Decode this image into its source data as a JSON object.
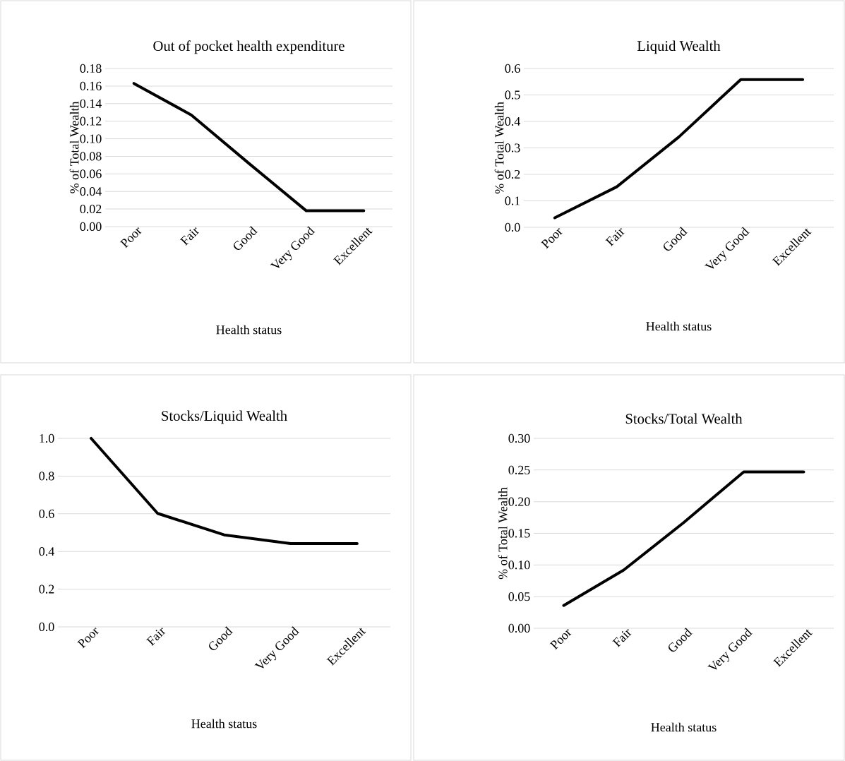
{
  "chart_data": [
    {
      "type": "line",
      "title": "Out of pocket health expenditure",
      "xlabel": "Health status",
      "ylabel": "% of Total Wealth",
      "categories": [
        "Poor",
        "Fair",
        "Good",
        "Very Good",
        "Excellent"
      ],
      "values": [
        0.163,
        0.127,
        0.072,
        0.018,
        0.018
      ],
      "color": "#000000",
      "ylim": [
        0,
        0.18
      ],
      "yticks": [
        {
          "value": 0,
          "label": "0.00"
        },
        0.02,
        0.04,
        0.06,
        0.08,
        {
          "value": 0.1,
          "label": "0.10"
        },
        0.12,
        0.14,
        0.16,
        0.18
      ],
      "grid": "y",
      "line_style": "solid",
      "marker": "none"
    },
    {
      "type": "line",
      "title": "Liquid Wealth",
      "xlabel": "Health status",
      "ylabel": "% of Total Wealth",
      "categories": [
        "Poor",
        "Fair",
        "Good",
        "Very Good",
        "Excellent"
      ],
      "values": [
        0.036,
        0.153,
        0.341,
        0.558,
        0.558
      ],
      "color": "#000000",
      "ylim": [
        0,
        0.6
      ],
      "yticks": [
        {
          "value": 0,
          "label": "0.0"
        },
        0.1,
        0.2,
        0.3,
        0.4,
        0.5,
        0.6
      ],
      "grid": "y",
      "line_style": "solid",
      "marker": "none"
    },
    {
      "type": "line",
      "title": "Stocks/Liquid Wealth",
      "xlabel": "Health status",
      "categories": [
        "Poor",
        "Fair",
        "Good",
        "Very Good",
        "Excellent"
      ],
      "values": [
        1.0,
        0.602,
        0.488,
        0.442,
        0.442
      ],
      "color": "#000000",
      "ylim": [
        0,
        1.0
      ],
      "yticks": [
        {
          "value": 0,
          "label": "0.0"
        },
        0.2,
        0.4,
        0.6,
        0.8,
        {
          "value": 1,
          "label": "1.0"
        }
      ],
      "grid": "y",
      "line_style": "solid",
      "marker": "none"
    },
    {
      "type": "line",
      "title": "Stocks/Total Wealth",
      "xlabel": "Health status",
      "ylabel": "% of Total Wealth",
      "categories": [
        "Poor",
        "Fair",
        "Good",
        "Very Good",
        "Excellent"
      ],
      "values": [
        0.036,
        0.092,
        0.167,
        0.247,
        0.247
      ],
      "color": "#000000",
      "ylim": [
        0,
        0.3
      ],
      "yticks": [
        {
          "value": 0,
          "label": "0.00"
        },
        0.05,
        {
          "value": 0.1,
          "label": "0.10"
        },
        0.15,
        {
          "value": 0.2,
          "label": "0.20"
        },
        0.25,
        {
          "value": 0.3,
          "label": "0.30"
        }
      ],
      "grid": "y",
      "line_style": "solid",
      "marker": "none"
    }
  ]
}
